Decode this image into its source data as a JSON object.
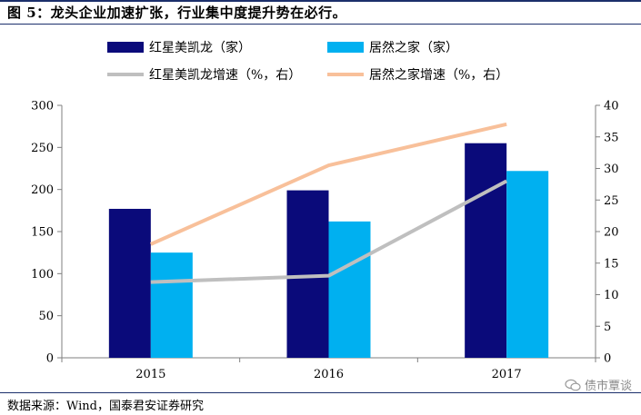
{
  "figure": {
    "title": "图 5：龙头企业加速扩张，行业集中度提升势在必行。",
    "source": "数据来源：Wind，国泰君安证券研究",
    "watermark": "债市覃谈"
  },
  "chart_data": {
    "type": "bar",
    "categories": [
      "2015",
      "2016",
      "2017"
    ],
    "series": [
      {
        "name": "红星美凯龙（家）",
        "kind": "bar",
        "axis": "left",
        "color": "#0a0a7a",
        "values": [
          177,
          199,
          255
        ]
      },
      {
        "name": "居然之家（家）",
        "kind": "bar",
        "axis": "left",
        "color": "#00b0f0",
        "values": [
          125,
          162,
          222
        ]
      },
      {
        "name": "红星美凯龙增速（%，右）",
        "kind": "line",
        "axis": "right",
        "color": "#bfbfbf",
        "values": [
          12,
          13,
          28
        ]
      },
      {
        "name": "居然之家增速（%，右）",
        "kind": "line",
        "axis": "right",
        "color": "#f8c09a",
        "values": [
          18,
          30.5,
          37
        ]
      }
    ],
    "y_left": {
      "min": 0,
      "max": 300,
      "step": 50,
      "ticks": [
        "0",
        "50",
        "100",
        "150",
        "200",
        "250",
        "300"
      ]
    },
    "y_right": {
      "min": 0,
      "max": 40,
      "step": 5,
      "ticks": [
        "0",
        "5",
        "10",
        "15",
        "20",
        "25",
        "30",
        "35",
        "40"
      ]
    },
    "legend_position": "top",
    "grid": false
  }
}
